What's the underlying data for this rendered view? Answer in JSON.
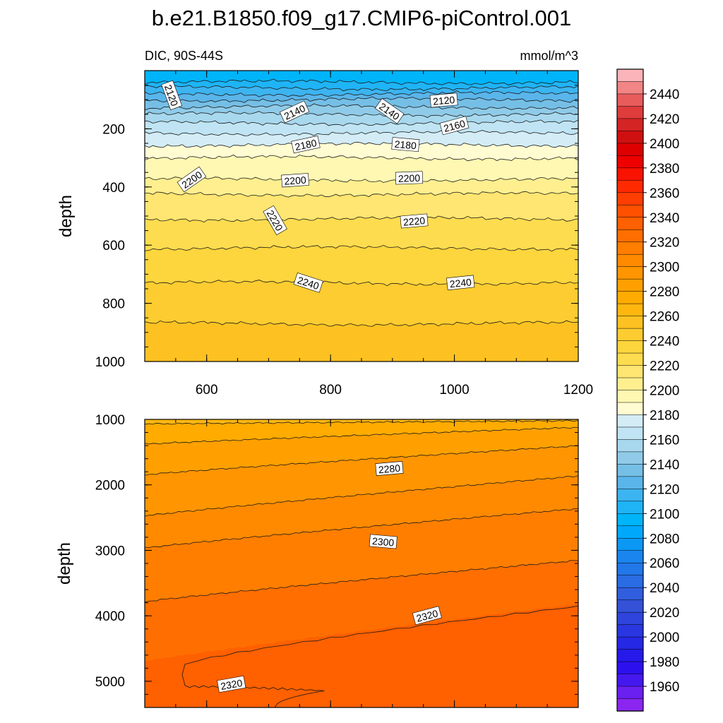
{
  "chart_data": [
    {
      "type": "contour",
      "panel": "upper",
      "title": "b.e21.B1850.f09_g17.CMIP6-piControl.001",
      "left_subtitle": "DIC, 90S-44S",
      "right_subtitle": "mmol/m^3",
      "xlabel": "",
      "ylabel": "depth",
      "xlim": [
        500,
        1200
      ],
      "ylim": [
        0,
        1000
      ],
      "y_inverted": true,
      "x_ticks": [
        "600",
        "800",
        "1000",
        "1200"
      ],
      "x_tick_values": [
        600,
        800,
        1000,
        1200
      ],
      "y_ticks": [
        "200",
        "400",
        "600",
        "800",
        "1000"
      ],
      "y_tick_values": [
        200,
        400,
        600,
        800,
        1000
      ],
      "contours": [
        {
          "level": 2100,
          "depth": 40
        },
        {
          "level": 2110,
          "depth": 60
        },
        {
          "level": 2120,
          "depth": 80
        },
        {
          "level": 2130,
          "depth": 100
        },
        {
          "level": 2140,
          "depth": 125
        },
        {
          "level": 2150,
          "depth": 150
        },
        {
          "level": 2160,
          "depth": 180
        },
        {
          "level": 2170,
          "depth": 215
        },
        {
          "level": 2180,
          "depth": 255
        },
        {
          "level": 2190,
          "depth": 300
        },
        {
          "level": 2200,
          "depth": 375
        },
        {
          "level": 2210,
          "depth": 425
        },
        {
          "level": 2220,
          "depth": 510
        },
        {
          "level": 2230,
          "depth": 610
        },
        {
          "level": 2240,
          "depth": 730
        },
        {
          "level": 2250,
          "depth": 870
        }
      ],
      "labels": [
        {
          "text": "2120",
          "x": 543,
          "depth": 85,
          "angle": 70
        },
        {
          "text": "2140",
          "x": 742,
          "depth": 143,
          "angle": -25
        },
        {
          "text": "2140",
          "x": 895,
          "depth": 140,
          "angle": 35
        },
        {
          "text": "2120",
          "x": 983,
          "depth": 103,
          "angle": -5
        },
        {
          "text": "2160",
          "x": 1000,
          "depth": 190,
          "angle": -15
        },
        {
          "text": "2180",
          "x": 760,
          "depth": 255,
          "angle": -12
        },
        {
          "text": "2180",
          "x": 921,
          "depth": 255,
          "angle": 5
        },
        {
          "text": "2200",
          "x": 576,
          "depth": 375,
          "angle": -35
        },
        {
          "text": "2200",
          "x": 743,
          "depth": 378,
          "angle": -4
        },
        {
          "text": "2200",
          "x": 927,
          "depth": 370,
          "angle": -2
        },
        {
          "text": "2220",
          "x": 710,
          "depth": 515,
          "angle": 60
        },
        {
          "text": "2220",
          "x": 935,
          "depth": 518,
          "angle": -5
        },
        {
          "text": "2240",
          "x": 764,
          "depth": 730,
          "angle": 18
        },
        {
          "text": "2240",
          "x": 1010,
          "depth": 730,
          "angle": -6
        }
      ]
    },
    {
      "type": "contour",
      "panel": "lower",
      "xlabel": "",
      "ylabel": "depth",
      "xlim": [
        500,
        1200
      ],
      "ylim": [
        1000,
        5400
      ],
      "y_inverted": true,
      "y_ticks": [
        "1000",
        "2000",
        "3000",
        "4000",
        "5000"
      ],
      "y_tick_values": [
        1000,
        2000,
        3000,
        4000,
        5000
      ],
      "contours": [
        {
          "level": 2270,
          "depth_left": 1070,
          "depth_right": 1020
        },
        {
          "level": 2280,
          "depth_left": 1380,
          "depth_right": 1120
        },
        {
          "level": 2290,
          "depth_left": 1850,
          "depth_right": 1400
        },
        {
          "level": 2300,
          "depth_left": 2480,
          "depth_right": 1860
        },
        {
          "level": 2310,
          "depth_left": 2970,
          "depth_right": 2360
        },
        {
          "level": 2320,
          "depth_left": 3790,
          "depth_right": 3150
        },
        {
          "level": 2330,
          "depth_left": 4700,
          "depth_right": 3810
        }
      ],
      "labels": [
        {
          "text": "2280",
          "x": 895,
          "depth": 1755,
          "angle": -5
        },
        {
          "text": "2300",
          "x": 885,
          "depth": 2870,
          "angle": 5
        },
        {
          "text": "2320",
          "x": 956,
          "depth": 4000,
          "angle": -15
        },
        {
          "text": "2320",
          "x": 640,
          "depth": 5050,
          "angle": -10
        }
      ]
    }
  ],
  "colorbar": {
    "labels": [
      "2440",
      "2420",
      "2400",
      "2380",
      "2360",
      "2340",
      "2320",
      "2300",
      "2280",
      "2260",
      "2240",
      "2220",
      "2200",
      "2180",
      "2160",
      "2140",
      "2120",
      "2100",
      "2080",
      "2060",
      "2040",
      "2020",
      "2000",
      "1980",
      "1960"
    ],
    "levels_top_to_bottom": [
      2450,
      2440,
      2430,
      2420,
      2410,
      2400,
      2390,
      2380,
      2370,
      2360,
      2350,
      2340,
      2330,
      2320,
      2310,
      2300,
      2290,
      2280,
      2270,
      2260,
      2250,
      2240,
      2230,
      2220,
      2210,
      2200,
      2190,
      2180,
      2170,
      2160,
      2150,
      2140,
      2130,
      2120,
      2110,
      2100,
      2090,
      2080,
      2070,
      2060,
      2050,
      2040,
      2030,
      2020,
      2010,
      2000,
      1990,
      1980,
      1970,
      1960,
      1950
    ],
    "colors": [
      "#fbb4b9",
      "#f28585",
      "#e85c5c",
      "#df3c3c",
      "#d42424",
      "#d01010",
      "#de0000",
      "#ee0000",
      "#fa1200",
      "#ff2a00",
      "#ff3e00",
      "#ff5000",
      "#ff6000",
      "#ff6e00",
      "#ff7e00",
      "#ff8a00",
      "#ff9500",
      "#ffa000",
      "#ffab00",
      "#ffb710",
      "#fdc221",
      "#fdcc30",
      "#fdd53d",
      "#fedc4f",
      "#ffe571",
      "#ffef8f",
      "#fff8b2",
      "#fffcd2",
      "#d3ecf6",
      "#c0e4f3",
      "#a8d8ee",
      "#8fcbe8",
      "#75bfe6",
      "#5ab5ea",
      "#3cb4f0",
      "#1fb4f6",
      "#00b4fa",
      "#00a8fb",
      "#0b98f5",
      "#1a85ee",
      "#2277e9",
      "#2a6ce3",
      "#305ede",
      "#3352d8",
      "#2f44dc",
      "#2a36e0",
      "#2528e4",
      "#251aea",
      "#2d10ee",
      "#4518ef",
      "#6a20ef",
      "#8a26ef"
    ]
  }
}
